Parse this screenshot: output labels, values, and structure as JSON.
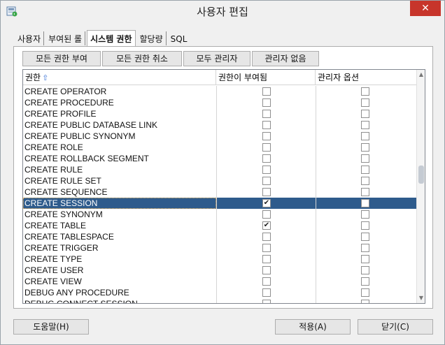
{
  "window": {
    "title": "사용자 편집",
    "close_label": "✕"
  },
  "tabs": [
    {
      "label": "사용자"
    },
    {
      "label": "부여된 롤"
    },
    {
      "label": "시스템 권한",
      "active": true
    },
    {
      "label": "할당량"
    },
    {
      "label": "SQL"
    }
  ],
  "toolbar": {
    "grant_all": "모든 권한 부여",
    "revoke_all": "모든 권한 취소",
    "all_admin": "모두 관리자",
    "no_admin": "관리자 없음"
  },
  "grid": {
    "columns": [
      "권한",
      "권한이 부여됨",
      "관리자 옵션"
    ],
    "sort_indicator": "⇧",
    "rows": [
      {
        "name": "CREATE OPERATOR",
        "granted": false,
        "admin": false
      },
      {
        "name": "CREATE PROCEDURE",
        "granted": false,
        "admin": false
      },
      {
        "name": "CREATE PROFILE",
        "granted": false,
        "admin": false
      },
      {
        "name": "CREATE PUBLIC DATABASE LINK",
        "granted": false,
        "admin": false
      },
      {
        "name": "CREATE PUBLIC SYNONYM",
        "granted": false,
        "admin": false
      },
      {
        "name": "CREATE ROLE",
        "granted": false,
        "admin": false
      },
      {
        "name": "CREATE ROLLBACK SEGMENT",
        "granted": false,
        "admin": false
      },
      {
        "name": "CREATE RULE",
        "granted": false,
        "admin": false
      },
      {
        "name": "CREATE RULE SET",
        "granted": false,
        "admin": false
      },
      {
        "name": "CREATE SEQUENCE",
        "granted": false,
        "admin": false
      },
      {
        "name": "CREATE SESSION",
        "granted": true,
        "admin": false,
        "selected": true
      },
      {
        "name": "CREATE SYNONYM",
        "granted": false,
        "admin": false
      },
      {
        "name": "CREATE TABLE",
        "granted": true,
        "admin": false
      },
      {
        "name": "CREATE TABLESPACE",
        "granted": false,
        "admin": false
      },
      {
        "name": "CREATE TRIGGER",
        "granted": false,
        "admin": false
      },
      {
        "name": "CREATE TYPE",
        "granted": false,
        "admin": false
      },
      {
        "name": "CREATE USER",
        "granted": false,
        "admin": false
      },
      {
        "name": "CREATE VIEW",
        "granted": false,
        "admin": false
      },
      {
        "name": "DEBUG ANY PROCEDURE",
        "granted": false,
        "admin": false
      },
      {
        "name": "DEBUG CONNECT SESSION",
        "granted": false,
        "admin": false
      }
    ]
  },
  "footer": {
    "help": "도움말(H)",
    "apply": "적용(A)",
    "close": "닫기(C)"
  },
  "colors": {
    "selection": "#2e5b8c",
    "close_button": "#c7352b"
  }
}
